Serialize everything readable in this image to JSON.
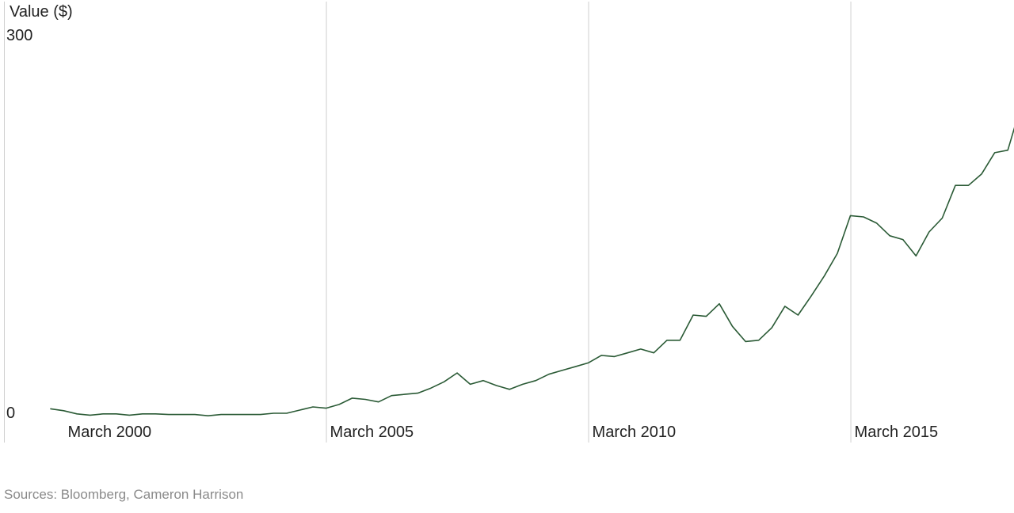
{
  "chart_data": {
    "type": "line",
    "title": "",
    "ylabel": "Value ($)",
    "xlabel": "",
    "ylim": [
      0,
      300
    ],
    "y_ticks": [
      {
        "value": 300,
        "label": "300"
      },
      {
        "value": 0,
        "label": "0"
      }
    ],
    "x_ticks": [
      {
        "value": "2000-03",
        "label": "March 2000"
      },
      {
        "value": "2005-03",
        "label": "March 2005"
      },
      {
        "value": "2010-03",
        "label": "March 2010"
      },
      {
        "value": "2015-03",
        "label": "March 2015"
      }
    ],
    "grid": "vertical",
    "line_color": "#2a5a35",
    "series": [
      {
        "values": [
          [
            "1999-12",
            3.5
          ],
          [
            "2000-03",
            2
          ],
          [
            "2000-06",
            -0.5
          ],
          [
            "2000-09",
            -1.5
          ],
          [
            "2000-12",
            -0.5
          ],
          [
            "2001-03",
            -0.5
          ],
          [
            "2001-06",
            -1.5
          ],
          [
            "2001-09",
            -0.5
          ],
          [
            "2001-12",
            -0.5
          ],
          [
            "2002-03",
            -1.0
          ],
          [
            "2002-06",
            -1.0
          ],
          [
            "2002-09",
            -1.0
          ],
          [
            "2002-12",
            -2.0
          ],
          [
            "2003-03",
            -1.0
          ],
          [
            "2003-06",
            -1.0
          ],
          [
            "2003-09",
            -1.0
          ],
          [
            "2003-12",
            -1.0
          ],
          [
            "2004-03",
            0
          ],
          [
            "2004-06",
            0
          ],
          [
            "2004-09",
            2.5
          ],
          [
            "2004-12",
            5
          ],
          [
            "2005-03",
            4
          ],
          [
            "2005-06",
            7
          ],
          [
            "2005-09",
            12
          ],
          [
            "2005-12",
            11
          ],
          [
            "2006-03",
            9
          ],
          [
            "2006-06",
            14
          ],
          [
            "2006-09",
            15
          ],
          [
            "2006-12",
            16
          ],
          [
            "2007-03",
            20
          ],
          [
            "2007-06",
            25
          ],
          [
            "2007-09",
            32
          ],
          [
            "2007-12",
            23
          ],
          [
            "2008-03",
            26
          ],
          [
            "2008-06",
            22
          ],
          [
            "2008-09",
            19
          ],
          [
            "2008-12",
            23
          ],
          [
            "2009-03",
            26
          ],
          [
            "2009-06",
            31
          ],
          [
            "2009-09",
            34
          ],
          [
            "2009-12",
            37
          ],
          [
            "2010-03",
            40
          ],
          [
            "2010-06",
            46
          ],
          [
            "2010-09",
            45
          ],
          [
            "2010-12",
            48
          ],
          [
            "2011-03",
            51
          ],
          [
            "2011-06",
            48
          ],
          [
            "2011-09",
            58
          ],
          [
            "2011-12",
            58
          ],
          [
            "2012-03",
            78
          ],
          [
            "2012-06",
            77
          ],
          [
            "2012-09",
            87
          ],
          [
            "2012-12",
            69
          ],
          [
            "2013-03",
            57
          ],
          [
            "2013-06",
            58
          ],
          [
            "2013-09",
            68
          ],
          [
            "2013-12",
            85
          ],
          [
            "2014-03",
            78
          ],
          [
            "2014-06",
            93
          ],
          [
            "2014-09",
            109
          ],
          [
            "2014-12",
            127
          ],
          [
            "2015-03",
            157
          ],
          [
            "2015-06",
            156
          ],
          [
            "2015-09",
            151
          ],
          [
            "2015-12",
            141
          ],
          [
            "2016-03",
            138
          ],
          [
            "2016-06",
            125
          ],
          [
            "2016-09",
            144
          ],
          [
            "2016-12",
            155
          ],
          [
            "2017-03",
            181
          ],
          [
            "2017-06",
            181
          ],
          [
            "2017-09",
            190
          ],
          [
            "2017-12",
            207
          ],
          [
            "2018-03",
            209
          ],
          [
            "2018-06",
            244
          ]
        ]
      }
    ]
  },
  "source": "Sources: Bloomberg, Cameron Harrison"
}
